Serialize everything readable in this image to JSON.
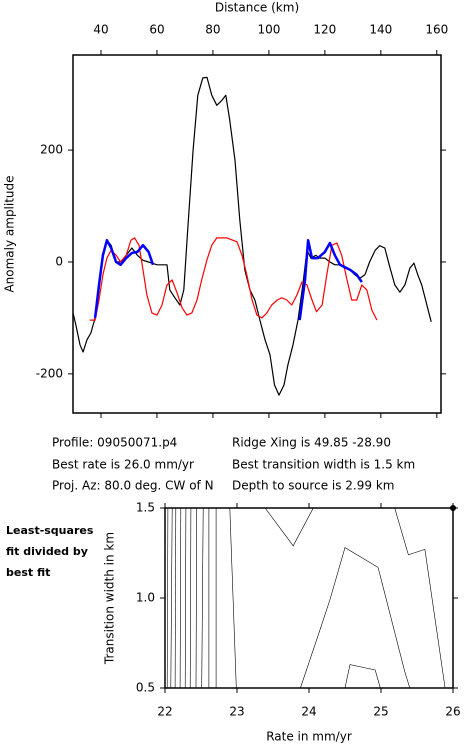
{
  "chart_data": [
    {
      "type": "line",
      "xlabel": "Distance (km)",
      "ylabel": "Anomaly amplitude",
      "xlim": [
        30,
        161.5
      ],
      "xticks": [
        40,
        60,
        80,
        100,
        120,
        140,
        160
      ],
      "ylim": [
        -270,
        370
      ],
      "yticks": [
        -200,
        0,
        200
      ],
      "series": [
        {
          "color": "#000000",
          "width": 1.2,
          "x": [
            30,
            31,
            32.5,
            33.6,
            35,
            36.4,
            37.9,
            39.3,
            40.7,
            42.1,
            43.6,
            45.4,
            47,
            49,
            51,
            53,
            55,
            57,
            60,
            62,
            63.6,
            64.6,
            66.4,
            68.2,
            69.6,
            71,
            72.9,
            74.6,
            76.4,
            77.9,
            79.6,
            81.4,
            83.2,
            84.6,
            86,
            87.9,
            89.6,
            91.4,
            93.2,
            95,
            96.8,
            98.6,
            100.4,
            102,
            103.6,
            105.4,
            106.8,
            108.6,
            110.4,
            112.1,
            113.6,
            115,
            116.8,
            118.2,
            120,
            121.8,
            123.6,
            125.4,
            127.1,
            129,
            130.7,
            132.5,
            134.3,
            136,
            138,
            139.6,
            141.4,
            143,
            145,
            146.8,
            148.6,
            150.4,
            151.8,
            153.2,
            154.6,
            156,
            158
          ],
          "values": [
            -91,
            -112,
            -148,
            -161,
            -139,
            -127,
            -100,
            -50,
            12,
            39,
            30,
            0,
            0,
            12,
            25,
            12,
            3,
            0,
            -5,
            -5,
            -5,
            -50,
            -64,
            -77,
            -50,
            57,
            200,
            298,
            329,
            330,
            298,
            280,
            289,
            298,
            254,
            182,
            75,
            -14,
            -50,
            -68,
            -104,
            -139,
            -166,
            -220,
            -238,
            -220,
            -184,
            -148,
            -104,
            -41,
            21,
            7,
            12,
            7,
            7,
            0,
            -5,
            -5,
            -11,
            -14,
            -23,
            -29,
            -23,
            0,
            21,
            29,
            25,
            -5,
            -41,
            -54,
            -41,
            -11,
            -2,
            -23,
            -41,
            -68,
            -107
          ]
        },
        {
          "color": "#ff0000",
          "width": 1.2,
          "x": [
            36,
            37.9,
            39.3,
            40.7,
            42.1,
            43.6,
            45.4,
            47,
            49,
            50.7,
            52,
            53.6,
            55,
            56.4,
            58.2,
            60,
            61.8,
            63.6,
            65.4,
            67.1,
            69,
            70.7,
            72.5,
            74.3,
            76,
            77.9,
            79.6,
            81.4,
            85,
            88.6,
            90.4,
            92.1,
            94,
            95.7,
            97.5,
            99.3,
            101,
            103,
            104.6,
            106.4,
            108.2,
            110,
            111.8,
            113.6,
            115.4,
            117,
            119,
            120.7,
            122.5,
            124.3,
            126,
            127.9,
            129.6,
            131.4,
            133.2,
            135,
            136.8,
            138.6
          ],
          "values": [
            -104,
            -104,
            -68,
            -23,
            7,
            21,
            12,
            0,
            12,
            39,
            43,
            30,
            -14,
            -59,
            -91,
            -95,
            -77,
            -41,
            -32,
            -54,
            -82,
            -95,
            -91,
            -68,
            -32,
            4,
            30,
            43,
            43,
            36,
            12,
            -23,
            -68,
            -95,
            -100,
            -91,
            -77,
            -68,
            -64,
            -68,
            -77,
            -59,
            -36,
            -41,
            -68,
            -89,
            -77,
            -23,
            30,
            34,
            12,
            -32,
            -68,
            -68,
            -41,
            -50,
            -86,
            -104
          ]
        },
        {
          "color": "#0000ff",
          "width": 2.5,
          "x": [
            37.9,
            39.3,
            40.7,
            42.1,
            43.6,
            45.4,
            47,
            49,
            51,
            53,
            55,
            57,
            58.6,
            null,
            111,
            112.9,
            114,
            115.4,
            117.5,
            120,
            121.8,
            123.6,
            125.4,
            129,
            131.4,
            133.2
          ],
          "values": [
            -100,
            -41,
            12,
            39,
            25,
            0,
            -5,
            7,
            16,
            18,
            30,
            18,
            -5,
            null,
            -104,
            -32,
            39,
            7,
            7,
            18,
            34,
            12,
            -5,
            -14,
            -23,
            -36
          ]
        }
      ]
    },
    {
      "type": "contour",
      "xlabel": "Rate in mm/yr",
      "ylabel": "Transition width in km",
      "xlim": [
        22,
        26
      ],
      "xticks": [
        22,
        23,
        24,
        25,
        26
      ],
      "ylim": [
        0.5,
        1.5
      ],
      "yticks": [
        0.5,
        {
          "value": 1,
          "label": "1.0"
        },
        1.5
      ],
      "contours": [
        {
          "x": [
            22.04,
            22.03
          ],
          "y": [
            1.5,
            0.5
          ]
        },
        {
          "x": [
            22.1,
            22.08
          ],
          "y": [
            1.5,
            0.5
          ]
        },
        {
          "x": [
            22.15,
            22.14
          ],
          "y": [
            1.5,
            0.5
          ]
        },
        {
          "x": [
            22.22,
            22.21
          ],
          "y": [
            1.5,
            0.5
          ]
        },
        {
          "x": [
            22.29,
            22.28
          ],
          "y": [
            1.5,
            0.5
          ]
        },
        {
          "x": [
            22.36,
            22.35
          ],
          "y": [
            1.5,
            0.5
          ]
        },
        {
          "x": [
            22.44,
            22.43
          ],
          "y": [
            1.5,
            0.5
          ]
        },
        {
          "x": [
            22.53,
            22.51
          ],
          "y": [
            1.5,
            0.5
          ]
        },
        {
          "x": [
            22.61,
            22.61
          ],
          "y": [
            1.5,
            0.5
          ]
        },
        {
          "x": [
            22.71,
            22.71
          ],
          "y": [
            1.5,
            0.5
          ]
        },
        {
          "x": [
            22.9,
            22.99
          ],
          "y": [
            1.5,
            0.5
          ]
        },
        {
          "x": [
            23.39,
            23.78,
            24.06
          ],
          "y": [
            1.5,
            1.29,
            1.5
          ]
        },
        {
          "x": [
            23.88,
            24.15,
            24.29,
            24.5,
            24.96,
            25.33,
            25.4
          ],
          "y": [
            0.5,
            0.82,
            0.99,
            1.28,
            1.17,
            0.59,
            0.5
          ]
        },
        {
          "x": [
            25.19,
            25.38,
            25.61,
            25.89
          ],
          "y": [
            1.5,
            1.24,
            1.27,
            0.5
          ]
        },
        {
          "x": [
            24.5,
            24.57,
            24.92,
            24.99
          ],
          "y": [
            0.5,
            0.63,
            0.6,
            0.5
          ]
        }
      ],
      "best": {
        "x": 26,
        "y": 1.5
      }
    }
  ],
  "profile_info": [
    "Profile: 09050071.p4",
    "Best rate is 26.0 mm/yr",
    "Proj. Az: 80.0 deg. CW of N",
    "Ridge Xing is 49.85 -28.90",
    "Best transition width is 1.5 km",
    "Depth to source is   2.99 km"
  ],
  "side_label": [
    "Least-squares",
    "fit divided by",
    "best fit"
  ]
}
